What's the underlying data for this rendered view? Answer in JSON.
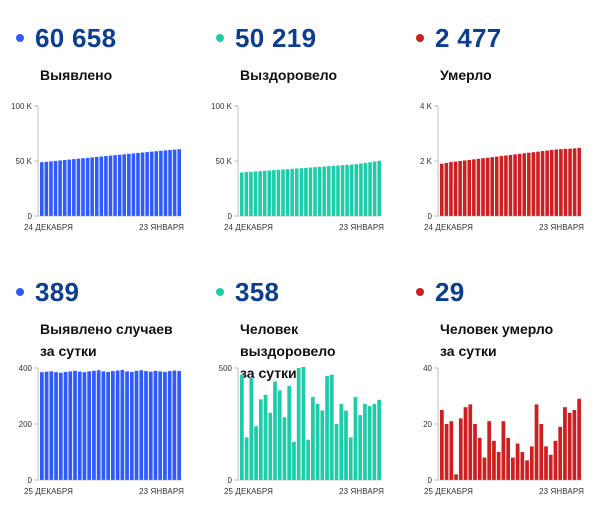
{
  "panels": [
    {
      "id": "detected-total",
      "color": "#2e5bff",
      "value": "60 658",
      "caption": [
        "Выявлено"
      ]
    },
    {
      "id": "recovered-total",
      "color": "#1fcca8",
      "value": "50 219",
      "caption": [
        "Выздоровело"
      ]
    },
    {
      "id": "deaths-total",
      "color": "#cc1f1f",
      "value": "2 477",
      "caption": [
        "Умерло"
      ]
    },
    {
      "id": "detected-daily",
      "color": "#2e5bff",
      "value": "389",
      "caption": [
        "Выявлено случаев",
        "за сутки"
      ]
    },
    {
      "id": "recovered-daily",
      "color": "#1fcca8",
      "value": "358",
      "caption": [
        "Человек выздоровело",
        "за сутки"
      ]
    },
    {
      "id": "deaths-daily",
      "color": "#cc1f1f",
      "value": "29",
      "caption": [
        "Человек умерло",
        "за сутки"
      ]
    }
  ],
  "chart_data": [
    {
      "id": "detected-total",
      "type": "bar",
      "title": "Выявлено",
      "color": "#2e5bff",
      "ylim": [
        0,
        100000
      ],
      "yticks": [
        0,
        50000,
        100000
      ],
      "ytick_labels": [
        "0",
        "50 K",
        "100 K"
      ],
      "x_start_label": "24 ДЕКАБРЯ",
      "x_end_label": "23 ЯНВАРЯ",
      "values": [
        48900,
        49300,
        49700,
        50100,
        50500,
        50900,
        51300,
        51700,
        52100,
        52500,
        52900,
        53300,
        53700,
        54100,
        54500,
        54900,
        55300,
        55700,
        56100,
        56500,
        56900,
        57300,
        57700,
        58100,
        58500,
        58900,
        59300,
        59700,
        60000,
        60300,
        60658
      ]
    },
    {
      "id": "recovered-total",
      "type": "bar",
      "title": "Выздоровело",
      "color": "#1fcca8",
      "ylim": [
        0,
        100000
      ],
      "yticks": [
        0,
        50000,
        100000
      ],
      "ytick_labels": [
        "0",
        "50 K",
        "100 K"
      ],
      "x_start_label": "24 ДЕКАБРЯ",
      "x_end_label": "23 ЯНВАРЯ",
      "values": [
        39600,
        39900,
        40200,
        40500,
        40800,
        41100,
        41400,
        41700,
        42000,
        42300,
        42600,
        42900,
        43200,
        43500,
        43800,
        44100,
        44400,
        44700,
        45000,
        45300,
        45600,
        45900,
        46200,
        46500,
        46800,
        47100,
        47700,
        48300,
        48900,
        49500,
        50219
      ]
    },
    {
      "id": "deaths-total",
      "type": "bar",
      "title": "Умерло",
      "color": "#cc1f1f",
      "ylim": [
        0,
        4000
      ],
      "yticks": [
        0,
        2000,
        4000
      ],
      "ytick_labels": [
        "0",
        "2 K",
        "4 K"
      ],
      "x_start_label": "24 ДЕКАБРЯ",
      "x_end_label": "23 ЯНВАРЯ",
      "values": [
        1900,
        1930,
        1960,
        1980,
        2000,
        2020,
        2040,
        2060,
        2080,
        2100,
        2120,
        2140,
        2160,
        2180,
        2200,
        2220,
        2240,
        2260,
        2280,
        2300,
        2320,
        2340,
        2360,
        2380,
        2400,
        2420,
        2430,
        2440,
        2450,
        2460,
        2477
      ]
    },
    {
      "id": "detected-daily",
      "type": "bar",
      "title": "Выявлено случаев за сутки",
      "color": "#2e5bff",
      "ylim": [
        0,
        400
      ],
      "yticks": [
        0,
        200,
        400
      ],
      "ytick_labels": [
        "0",
        "200",
        "400"
      ],
      "x_start_label": "25 ДЕКАБРЯ",
      "x_end_label": "23 ЯНВАРЯ",
      "values": [
        385,
        387,
        388,
        385,
        383,
        386,
        388,
        390,
        387,
        385,
        388,
        390,
        392,
        388,
        386,
        389,
        391,
        393,
        388,
        386,
        390,
        392,
        389,
        387,
        390,
        388,
        386,
        389,
        391,
        389
      ]
    },
    {
      "id": "recovered-daily",
      "type": "bar",
      "title": "Человек выздоровело за сутки",
      "color": "#1fcca8",
      "ylim": [
        0,
        500
      ],
      "yticks": [
        0,
        500
      ],
      "ytick_labels": [
        "0",
        "500"
      ],
      "x_start_label": "25 ДЕКАБРЯ",
      "x_end_label": "23 ЯНВАРЯ",
      "values": [
        470,
        190,
        460,
        240,
        360,
        380,
        300,
        440,
        400,
        280,
        420,
        170,
        500,
        505,
        180,
        370,
        340,
        310,
        465,
        470,
        250,
        340,
        310,
        190,
        370,
        290,
        340,
        330,
        340,
        358
      ]
    },
    {
      "id": "deaths-daily",
      "type": "bar",
      "title": "Человек умерло за сутки",
      "color": "#cc1f1f",
      "ylim": [
        0,
        40
      ],
      "yticks": [
        0,
        20,
        40
      ],
      "ytick_labels": [
        "0",
        "20",
        "40"
      ],
      "x_start_label": "25 ДЕКАБРЯ",
      "x_end_label": "23 ЯНВАРЯ",
      "values": [
        25,
        20,
        21,
        2,
        22,
        26,
        27,
        20,
        15,
        8,
        21,
        14,
        10,
        21,
        15,
        8,
        13,
        10,
        7,
        12,
        27,
        20,
        12,
        9,
        14,
        19,
        26,
        24,
        25,
        29
      ]
    }
  ]
}
